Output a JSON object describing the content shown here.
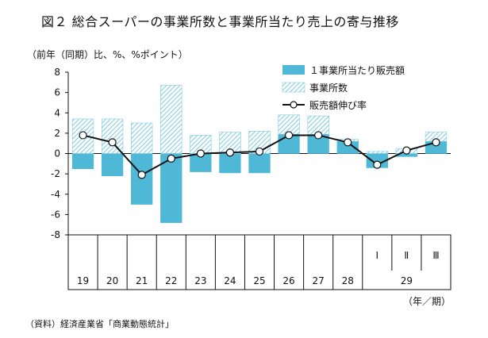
{
  "title": "図２ 総合スーパーの事業所数と事業所当たり売上の寄与推移",
  "unit_label": "（前年（同期）比、%、%ポイント）",
  "source": "（資料）経済産業省「商業動態統計」",
  "colors": {
    "per_store_sales": "#4fb8d6",
    "store_count_stripe": "#7ccbe2",
    "line": "#111111",
    "marker_fill": "#ffffff"
  },
  "chart_data": {
    "type": "bar+line",
    "title": "図２ 総合スーパーの事業所数と事業所当たり売上の寄与推移",
    "ylabel": "（前年（同期）比、%、%ポイント）",
    "xlabel": "（年／期）",
    "ylim": [
      -8,
      8
    ],
    "yticks": [
      8,
      6,
      4,
      2,
      0,
      -2,
      -4,
      -6,
      -8
    ],
    "categories": [
      "19",
      "20",
      "21",
      "22",
      "23",
      "24",
      "25",
      "26",
      "27",
      "28",
      "29-I",
      "29-II",
      "29-III"
    ],
    "quarter_labels": [
      "Ⅰ",
      "Ⅱ",
      "Ⅲ"
    ],
    "year_labels": [
      "19",
      "20",
      "21",
      "22",
      "23",
      "24",
      "25",
      "26",
      "27",
      "28",
      "29"
    ],
    "legend_placement": "top-right",
    "series": [
      {
        "name": "１事業所当たり販売額",
        "kind": "bar-solid",
        "values": [
          -1.5,
          -2.2,
          -5.0,
          -6.8,
          -1.8,
          -1.9,
          -1.9,
          1.9,
          1.9,
          1.2,
          -1.4,
          -0.3,
          1.2
        ]
      },
      {
        "name": "事業所数",
        "kind": "bar-hatched",
        "values": [
          3.4,
          3.4,
          3.0,
          6.7,
          1.8,
          2.1,
          2.2,
          1.9,
          1.8,
          0.2,
          0.2,
          0.5,
          0.9
        ]
      },
      {
        "name": "販売額伸び率",
        "kind": "line",
        "values": [
          1.8,
          1.1,
          -2.1,
          -0.5,
          0.0,
          0.1,
          0.2,
          1.8,
          1.8,
          1.1,
          -1.1,
          0.3,
          1.1
        ]
      }
    ]
  }
}
